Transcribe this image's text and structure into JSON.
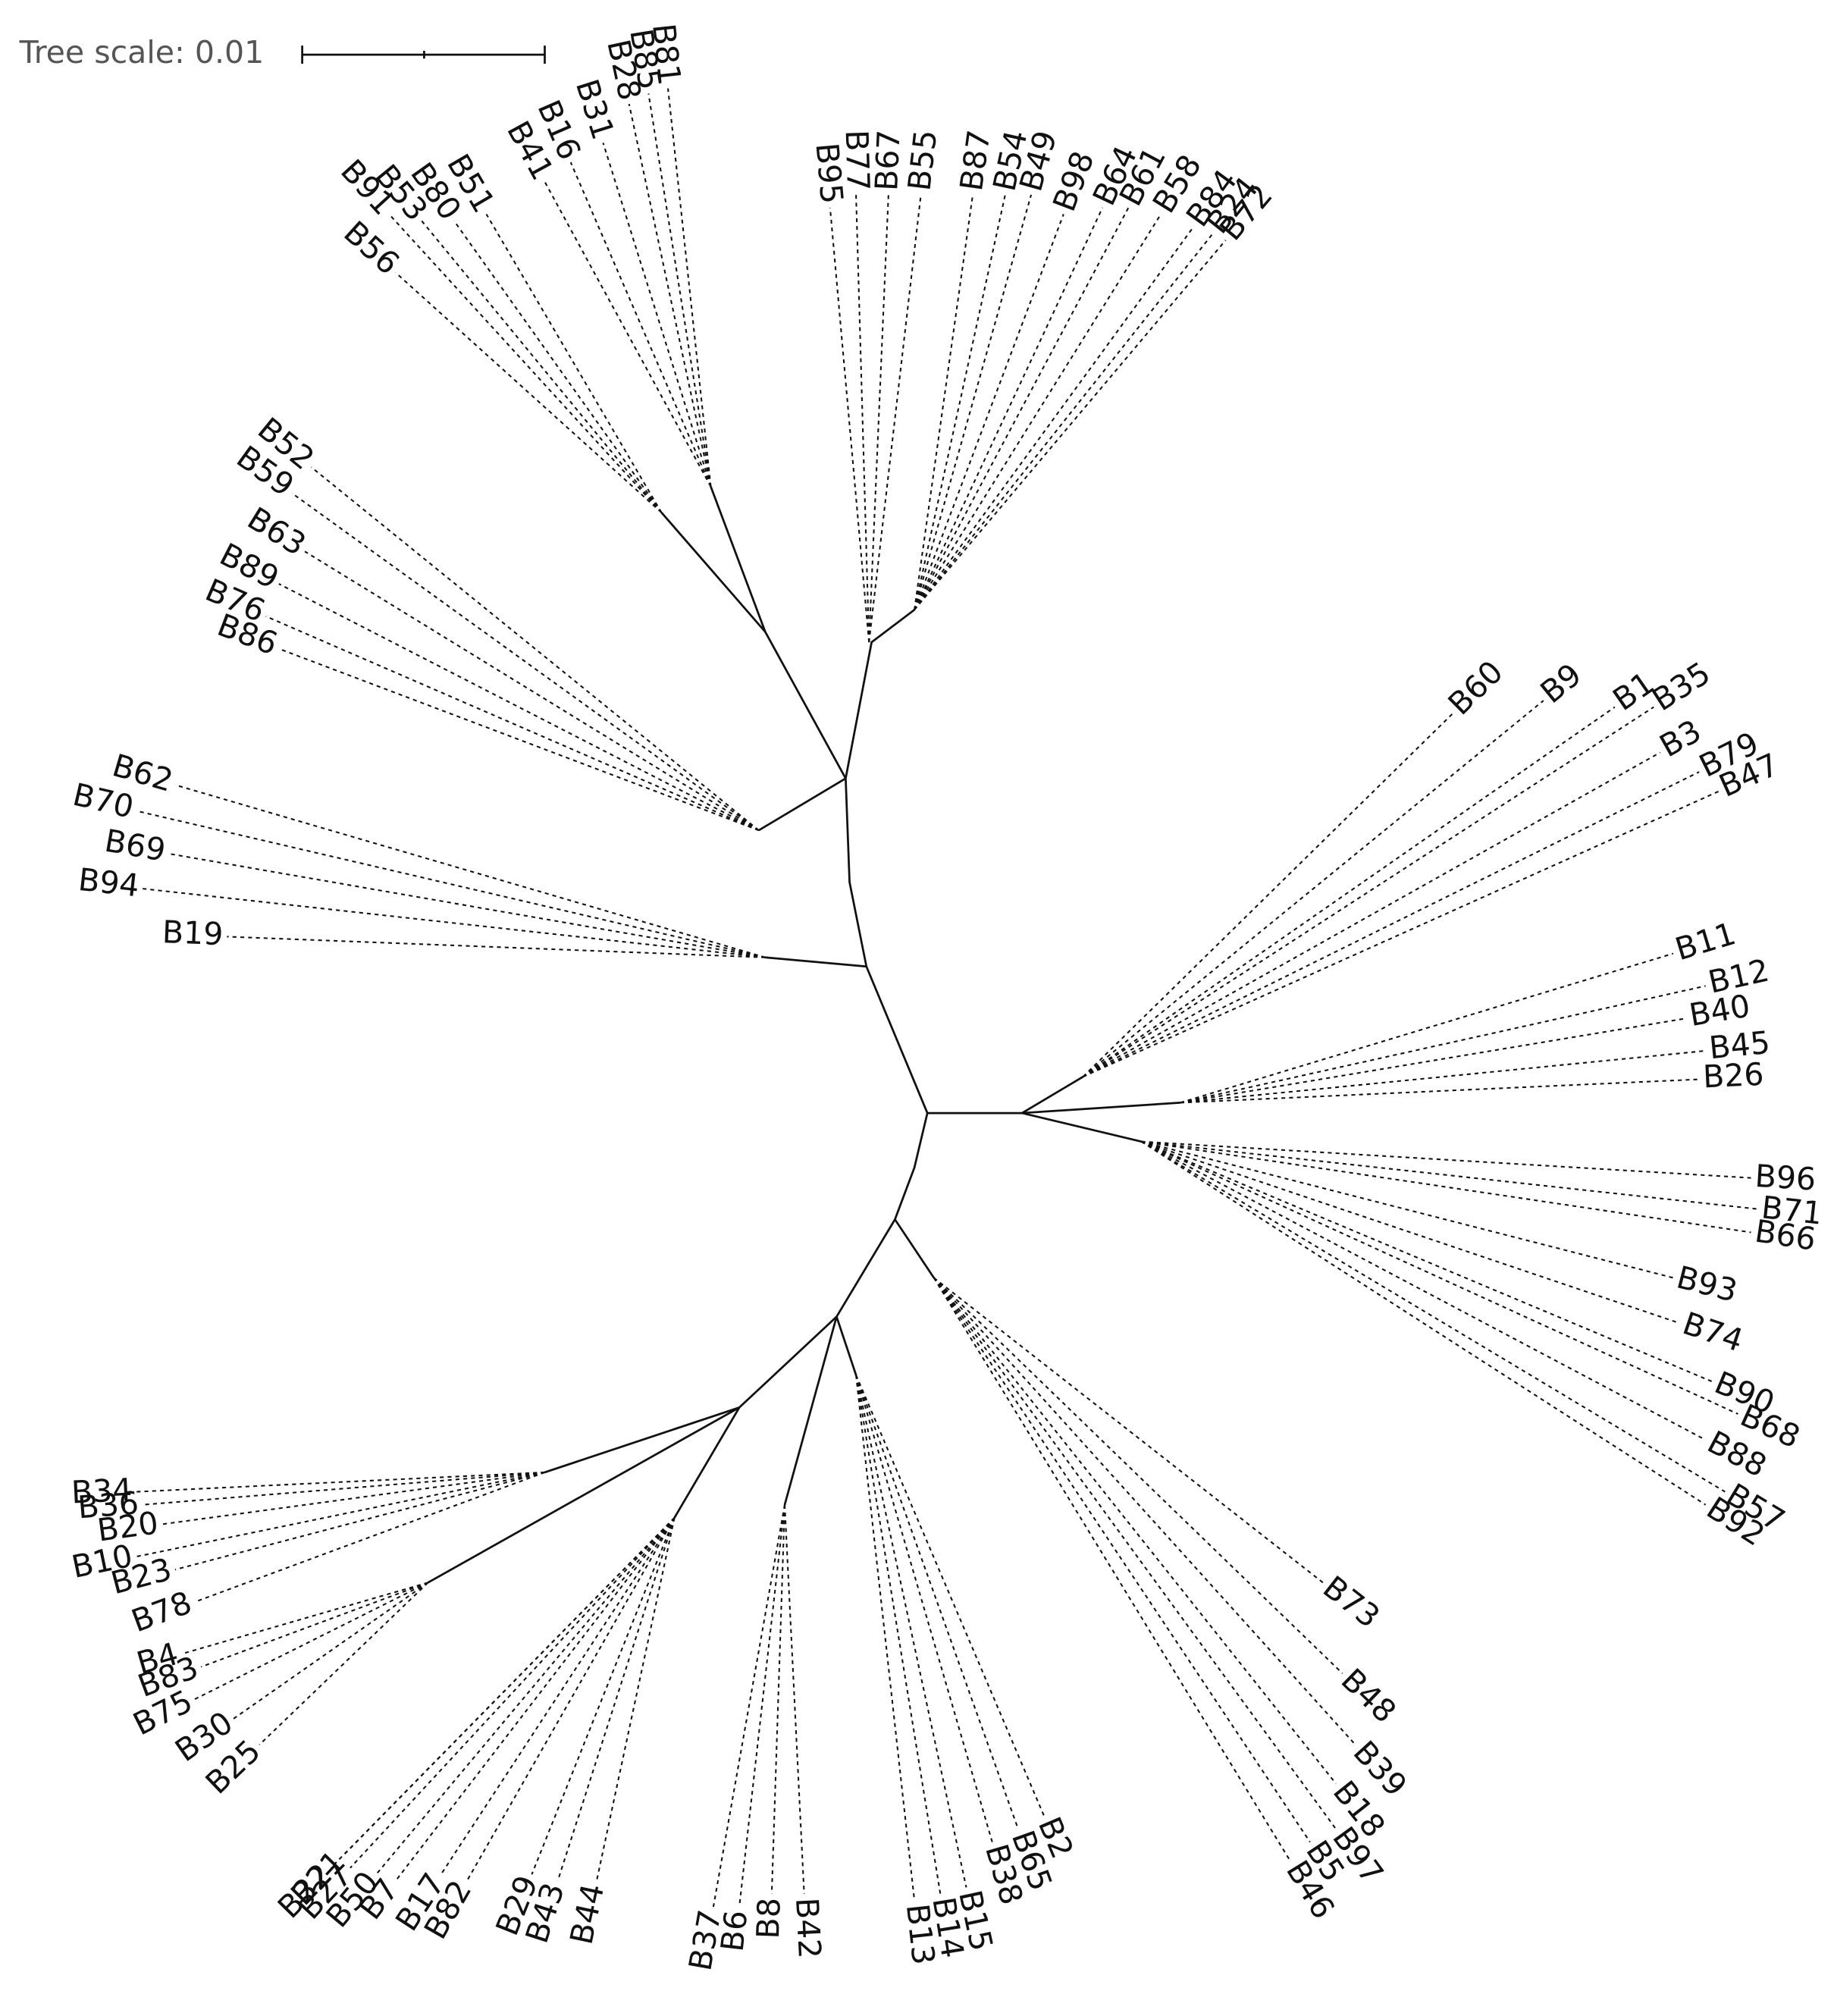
{
  "scale_label": "Tree scale: 0.01",
  "leaves": [
    "B81",
    "B85",
    "B28",
    "B31",
    "B16",
    "B41",
    "B51",
    "B80",
    "B53",
    "B91",
    "B56",
    "B95",
    "B77",
    "B67",
    "B55",
    "B87",
    "B54",
    "B49",
    "B98",
    "B64",
    "B61",
    "B58",
    "B84",
    "B24",
    "B72",
    "B52",
    "B59",
    "B63",
    "B89",
    "B76",
    "B86",
    "B62",
    "B70",
    "B69",
    "B94",
    "B19",
    "B60",
    "B9",
    "B1",
    "B35",
    "B3",
    "B79",
    "B47",
    "B11",
    "B12",
    "B40",
    "B45",
    "B26",
    "B96",
    "B71",
    "B66",
    "B93",
    "B74",
    "B90",
    "B68",
    "B88",
    "B57",
    "B92",
    "B73",
    "B48",
    "B39",
    "B18",
    "B97",
    "B5",
    "B46",
    "B2",
    "B65",
    "B38",
    "B15",
    "B14",
    "B13",
    "B42",
    "B8",
    "B6",
    "B37",
    "B44",
    "B43",
    "B29",
    "B82",
    "B17",
    "B7",
    "B50",
    "B27",
    "B22",
    "B21",
    "B4",
    "B83",
    "B75",
    "B30",
    "B25",
    "B34",
    "B36",
    "B20",
    "B10",
    "B23",
    "B78"
  ]
}
